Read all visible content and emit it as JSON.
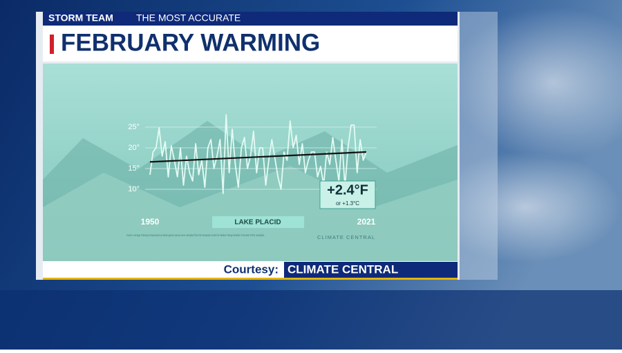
{
  "header": {
    "brand": "STORM TEAM",
    "tagline": "THE MOST ACCURATE",
    "title": "FEBRUARY WARMING"
  },
  "footer": {
    "label": "Courtesy:",
    "source": "CLIMATE CENTRAL"
  },
  "chart_data": {
    "type": "line",
    "location": "LAKE PLACID",
    "annotation": "+2.4°F",
    "annotation_sub": "or +1.3°C",
    "source_note": "Source: Average February temperatures at winter games venues were calculated from the European Centre for Medium Range Weather Forecasts' ERA5 reanalysis.",
    "logo": "CLIMATE CENTRAL",
    "x": [
      1950,
      1951,
      1952,
      1953,
      1954,
      1955,
      1956,
      1957,
      1958,
      1959,
      1960,
      1961,
      1962,
      1963,
      1964,
      1965,
      1966,
      1967,
      1968,
      1969,
      1970,
      1971,
      1972,
      1973,
      1974,
      1975,
      1976,
      1977,
      1978,
      1979,
      1980,
      1981,
      1982,
      1983,
      1984,
      1985,
      1986,
      1987,
      1988,
      1989,
      1990,
      1991,
      1992,
      1993,
      1994,
      1995,
      1996,
      1997,
      1998,
      1999,
      2000,
      2001,
      2002,
      2003,
      2004,
      2005,
      2006,
      2007,
      2008,
      2009,
      2010,
      2011,
      2012,
      2013,
      2014,
      2015,
      2016,
      2017,
      2018,
      2019,
      2020,
      2021
    ],
    "values": [
      13.5,
      19,
      20,
      24.8,
      18,
      21.5,
      13,
      20.5,
      17,
      13,
      20,
      11,
      18,
      14,
      12,
      21,
      13.5,
      17,
      10.5,
      20,
      22,
      15,
      18,
      22,
      9,
      28,
      14,
      24.5,
      16,
      10.5,
      20,
      22.5,
      15,
      18,
      24,
      14,
      20,
      20,
      11,
      17,
      22,
      17.5,
      13,
      10,
      19,
      17,
      26.5,
      20,
      23,
      16,
      21,
      14,
      17,
      19,
      19,
      13,
      15.5,
      11,
      19,
      16,
      22.5,
      17,
      12,
      22,
      10.5,
      20,
      25.5,
      25.5,
      14,
      22,
      17,
      19
    ],
    "color": "#e4fbf4",
    "trend": {
      "x": [
        1950,
        2021
      ],
      "values": [
        16.6,
        19.0
      ],
      "color": "#111111"
    },
    "xlim": [
      1950,
      2021
    ],
    "xticks": [
      1950,
      2021
    ],
    "ylim": [
      10,
      25
    ],
    "yticks": [
      {
        "value": 10,
        "label": "10°"
      },
      {
        "value": 15,
        "label": "15°"
      },
      {
        "value": 20,
        "label": "20°"
      },
      {
        "value": 25,
        "label": "25°"
      }
    ],
    "grid": true
  }
}
